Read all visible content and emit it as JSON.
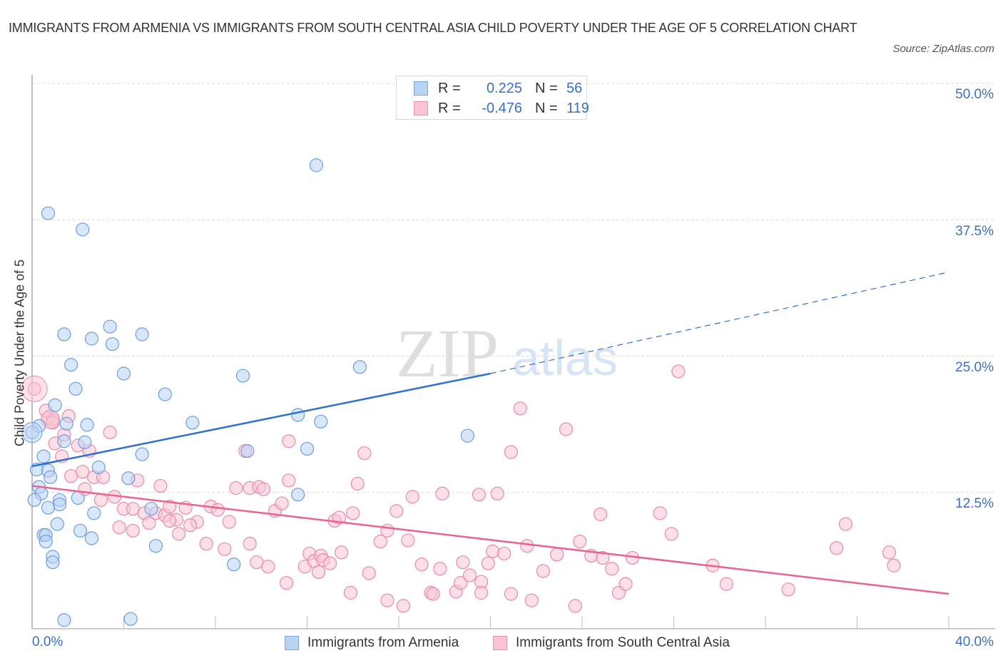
{
  "header": {
    "title": "IMMIGRANTS FROM ARMENIA VS IMMIGRANTS FROM SOUTH CENTRAL ASIA CHILD POVERTY UNDER THE AGE OF 5 CORRELATION CHART",
    "source": "Source: ZipAtlas.com"
  },
  "watermark": {
    "zip": "ZIP",
    "atlas": "atlas"
  },
  "legend_top": {
    "rows": [
      {
        "r_label": "R =",
        "r_value": "0.225",
        "n_label": "N =",
        "n_value": "56"
      },
      {
        "r_label": "R =",
        "r_value": "-0.476",
        "n_label": "N =",
        "n_value": "119"
      }
    ]
  },
  "colors": {
    "armenia_fill": "#b9d3f5",
    "armenia_stroke": "#6d9de0",
    "armenia_line": "#2f6fd0",
    "sca_fill": "#f9c4d4",
    "sca_stroke": "#e88aa8",
    "sca_line": "#e8638f",
    "tick_label": "#3a6fc9"
  },
  "chart_data": {
    "type": "scatter",
    "title": "IMMIGRANTS FROM ARMENIA VS IMMIGRANTS FROM SOUTH CENTRAL ASIA CHILD POVERTY UNDER THE AGE OF 5 CORRELATION CHART",
    "xlabel": "",
    "ylabel": "Child Poverty Under the Age of 5",
    "xlim": [
      0,
      40
    ],
    "ylim": [
      0,
      50
    ],
    "x_tick_labels": [
      "0.0%",
      "40.0%"
    ],
    "y_ticks": [
      12.5,
      25.0,
      37.5,
      50.0
    ],
    "y_tick_labels": [
      "12.5%",
      "25.0%",
      "37.5%",
      "50.0%"
    ],
    "grid": true,
    "legend": "bottom-center",
    "series": [
      {
        "name": "Immigrants from Armenia",
        "r": 0.225,
        "n": 56,
        "trend": {
          "x": [
            0,
            20
          ],
          "y": [
            14.9,
            23.4
          ],
          "extended_to": [
            40,
            32.7
          ]
        },
        "points": [
          [
            0.7,
            38.1
          ],
          [
            2.2,
            36.6
          ],
          [
            12.4,
            42.5
          ],
          [
            1.4,
            27.0
          ],
          [
            2.6,
            26.6
          ],
          [
            3.4,
            27.7
          ],
          [
            3.5,
            26.1
          ],
          [
            4.8,
            27.0
          ],
          [
            1.7,
            24.2
          ],
          [
            4.0,
            23.4
          ],
          [
            9.2,
            23.2
          ],
          [
            14.3,
            24.0
          ],
          [
            1.9,
            22.0
          ],
          [
            5.8,
            21.5
          ],
          [
            1.0,
            20.5
          ],
          [
            0.3,
            18.6
          ],
          [
            1.5,
            18.8
          ],
          [
            2.4,
            18.7
          ],
          [
            7.0,
            18.9
          ],
          [
            11.6,
            19.6
          ],
          [
            12.6,
            19.0
          ],
          [
            1.4,
            17.2
          ],
          [
            2.3,
            17.1
          ],
          [
            19.0,
            17.7
          ],
          [
            0.5,
            15.8
          ],
          [
            4.8,
            16.0
          ],
          [
            9.4,
            16.3
          ],
          [
            12.0,
            16.5
          ],
          [
            0.2,
            14.6
          ],
          [
            0.7,
            14.5
          ],
          [
            0.8,
            13.9
          ],
          [
            2.9,
            14.8
          ],
          [
            4.2,
            13.8
          ],
          [
            0.3,
            13.0
          ],
          [
            0.4,
            12.4
          ],
          [
            0.1,
            11.8
          ],
          [
            1.2,
            11.8
          ],
          [
            1.2,
            11.4
          ],
          [
            0.7,
            11.1
          ],
          [
            2.0,
            12.0
          ],
          [
            5.2,
            11.0
          ],
          [
            11.6,
            12.3
          ],
          [
            2.7,
            10.6
          ],
          [
            1.1,
            9.6
          ],
          [
            0.5,
            8.6
          ],
          [
            0.6,
            8.6
          ],
          [
            2.1,
            9.0
          ],
          [
            2.6,
            8.3
          ],
          [
            0.6,
            8.0
          ],
          [
            5.4,
            7.6
          ],
          [
            0.9,
            6.6
          ],
          [
            0.9,
            6.1
          ],
          [
            8.8,
            5.9
          ],
          [
            1.4,
            0.8
          ],
          [
            4.3,
            0.9
          ],
          [
            0.0,
            18.0
          ]
        ]
      },
      {
        "name": "Immigrants from South Central Asia",
        "r": -0.476,
        "n": 119,
        "trend": {
          "x": [
            0,
            40
          ],
          "y": [
            13.1,
            3.2
          ]
        },
        "points": [
          [
            0.1,
            22.0
          ],
          [
            0.7,
            19.3
          ],
          [
            0.9,
            19.2
          ],
          [
            0.6,
            20.0
          ],
          [
            1.4,
            17.8
          ],
          [
            1.3,
            15.8
          ],
          [
            1.7,
            14.0
          ],
          [
            2.2,
            14.4
          ],
          [
            2.5,
            16.3
          ],
          [
            3.4,
            18.0
          ],
          [
            2.0,
            16.8
          ],
          [
            2.3,
            12.8
          ],
          [
            2.7,
            13.9
          ],
          [
            3.1,
            13.9
          ],
          [
            3.0,
            11.8
          ],
          [
            3.6,
            12.1
          ],
          [
            4.0,
            11.0
          ],
          [
            4.6,
            13.6
          ],
          [
            4.4,
            11.0
          ],
          [
            4.9,
            10.6
          ],
          [
            5.1,
            9.7
          ],
          [
            5.4,
            10.6
          ],
          [
            5.8,
            10.4
          ],
          [
            6.0,
            11.2
          ],
          [
            6.3,
            10.0
          ],
          [
            3.8,
            9.3
          ],
          [
            4.4,
            9.0
          ],
          [
            5.6,
            13.1
          ],
          [
            6.0,
            9.9
          ],
          [
            6.7,
            11.1
          ],
          [
            6.4,
            8.7
          ],
          [
            7.2,
            9.8
          ],
          [
            7.8,
            11.2
          ],
          [
            8.1,
            10.9
          ],
          [
            6.9,
            9.5
          ],
          [
            7.6,
            7.8
          ],
          [
            8.6,
            9.8
          ],
          [
            8.4,
            7.3
          ],
          [
            8.9,
            12.9
          ],
          [
            9.3,
            16.3
          ],
          [
            9.5,
            7.8
          ],
          [
            9.5,
            12.9
          ],
          [
            9.9,
            13.0
          ],
          [
            10.1,
            12.8
          ],
          [
            9.8,
            6.1
          ],
          [
            10.3,
            5.7
          ],
          [
            10.6,
            10.8
          ],
          [
            10.9,
            11.5
          ],
          [
            11.2,
            17.2
          ],
          [
            11.1,
            4.2
          ],
          [
            11.2,
            13.6
          ],
          [
            11.9,
            5.7
          ],
          [
            12.1,
            6.9
          ],
          [
            12.3,
            6.2
          ],
          [
            12.6,
            6.7
          ],
          [
            12.7,
            6.3
          ],
          [
            12.5,
            5.2
          ],
          [
            13.0,
            6.0
          ],
          [
            13.2,
            9.9
          ],
          [
            13.4,
            10.2
          ],
          [
            13.5,
            7.0
          ],
          [
            14.0,
            10.6
          ],
          [
            14.2,
            13.3
          ],
          [
            14.5,
            16.1
          ],
          [
            13.9,
            3.3
          ],
          [
            14.7,
            5.1
          ],
          [
            15.5,
            9.0
          ],
          [
            15.2,
            8.0
          ],
          [
            15.5,
            2.6
          ],
          [
            15.9,
            10.8
          ],
          [
            16.2,
            2.1
          ],
          [
            16.6,
            12.1
          ],
          [
            16.4,
            8.1
          ],
          [
            17.0,
            5.9
          ],
          [
            17.4,
            3.3
          ],
          [
            17.5,
            3.2
          ],
          [
            17.8,
            5.5
          ],
          [
            17.9,
            12.4
          ],
          [
            18.5,
            3.4
          ],
          [
            18.7,
            4.2
          ],
          [
            18.8,
            6.1
          ],
          [
            19.1,
            4.9
          ],
          [
            19.6,
            4.3
          ],
          [
            19.5,
            12.3
          ],
          [
            19.6,
            3.3
          ],
          [
            19.9,
            6.0
          ],
          [
            20.1,
            7.1
          ],
          [
            20.6,
            6.9
          ],
          [
            20.3,
            12.4
          ],
          [
            20.9,
            3.2
          ],
          [
            20.9,
            16.2
          ],
          [
            21.3,
            20.2
          ],
          [
            21.6,
            7.6
          ],
          [
            21.8,
            2.6
          ],
          [
            22.3,
            5.3
          ],
          [
            22.9,
            6.8
          ],
          [
            23.3,
            18.3
          ],
          [
            23.7,
            2.1
          ],
          [
            23.9,
            8.0
          ],
          [
            24.4,
            6.7
          ],
          [
            24.8,
            10.5
          ],
          [
            24.9,
            6.5
          ],
          [
            25.3,
            5.5
          ],
          [
            25.6,
            3.3
          ],
          [
            25.9,
            4.1
          ],
          [
            26.2,
            6.5
          ],
          [
            27.4,
            10.6
          ],
          [
            27.9,
            8.7
          ],
          [
            28.2,
            23.6
          ],
          [
            29.7,
            5.8
          ],
          [
            30.3,
            4.1
          ],
          [
            33.0,
            3.6
          ],
          [
            35.1,
            7.4
          ],
          [
            35.5,
            9.6
          ],
          [
            37.4,
            7.0
          ],
          [
            37.6,
            5.8
          ],
          [
            0.9,
            18.9
          ],
          [
            1.6,
            19.5
          ],
          [
            1.0,
            17.0
          ]
        ]
      }
    ]
  },
  "axes": {
    "x_min_label": "0.0%",
    "x_max_label": "40.0%",
    "y_title": "Child Poverty Under the Age of 5"
  },
  "bottom_legend": [
    {
      "label": "Immigrants from Armenia"
    },
    {
      "label": "Immigrants from South Central Asia"
    }
  ]
}
